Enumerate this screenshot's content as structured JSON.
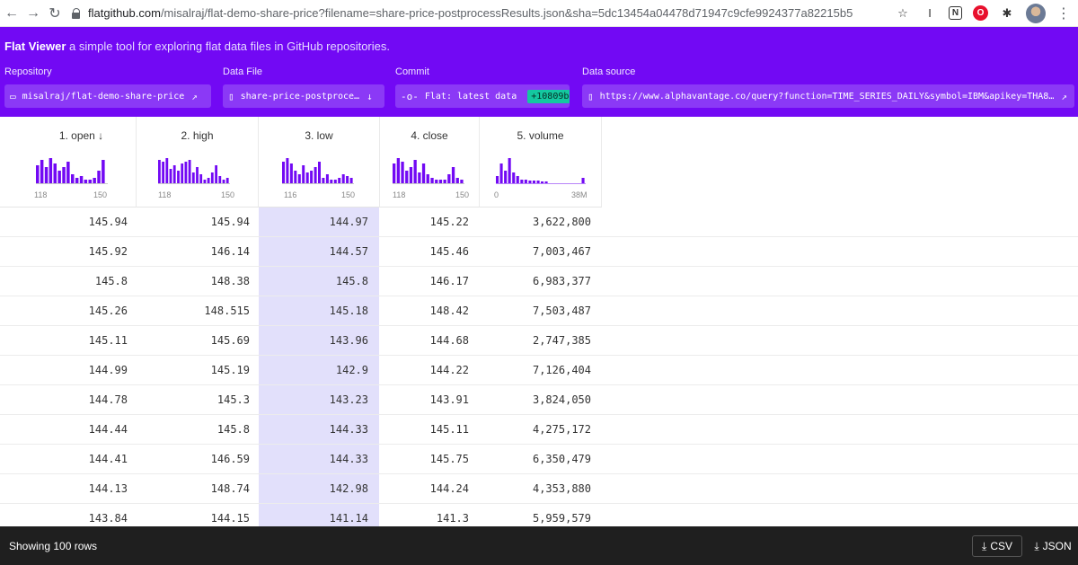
{
  "browser": {
    "url_host": "flatgithub.com",
    "url_path": "/misalraj/flat-demo-share-price?filename=share-price-postprocessResults.json&sha=5dc13454a04478d71947c9cfe9924377a82215b5",
    "ext_i": "I",
    "ext_n": "N",
    "ext_o": "O"
  },
  "header": {
    "app_name": "Flat Viewer",
    "tagline": "a simple tool for exploring flat data files in GitHub repositories.",
    "repository_label": "Repository",
    "repository_value": "misalraj/flat-demo-share-price",
    "datafile_label": "Data File",
    "datafile_value": "share-price-postproce…",
    "commit_label": "Commit",
    "commit_value": "Flat: latest data",
    "commit_sha": "+10809b",
    "datasource_label": "Data source",
    "datasource_value": "https://www.alphavantage.co/query?function=TIME_SERIES_DAILY&symbol=IBM&apikey=THA8…"
  },
  "columns": [
    {
      "title": "1. open ↓",
      "axis_min": "118",
      "axis_max": "150"
    },
    {
      "title": "2. high",
      "axis_min": "118",
      "axis_max": "150"
    },
    {
      "title": "3. low",
      "axis_min": "116",
      "axis_max": "150"
    },
    {
      "title": "4. close",
      "axis_min": "118",
      "axis_max": "150"
    },
    {
      "title": "5. volume",
      "axis_min": "0",
      "axis_max": "38M"
    }
  ],
  "rows": [
    [
      "145.94",
      "145.94",
      "144.97",
      "145.22",
      "3,622,800"
    ],
    [
      "145.92",
      "146.14",
      "144.57",
      "145.46",
      "7,003,467"
    ],
    [
      "145.8",
      "148.38",
      "145.8",
      "146.17",
      "6,983,377"
    ],
    [
      "145.26",
      "148.515",
      "145.18",
      "148.42",
      "7,503,487"
    ],
    [
      "145.11",
      "145.69",
      "143.96",
      "144.68",
      "2,747,385"
    ],
    [
      "144.99",
      "145.19",
      "142.9",
      "144.22",
      "7,126,404"
    ],
    [
      "144.78",
      "145.3",
      "143.23",
      "143.91",
      "3,824,050"
    ],
    [
      "144.44",
      "145.8",
      "144.33",
      "145.11",
      "4,275,172"
    ],
    [
      "144.41",
      "146.59",
      "144.33",
      "145.75",
      "6,350,479"
    ],
    [
      "144.13",
      "148.74",
      "142.98",
      "144.24",
      "4,353,880"
    ],
    [
      "143.84",
      "144.15",
      "141.14",
      "141.3",
      "5,959,579"
    ]
  ],
  "footer": {
    "row_count": "Showing 100 rows",
    "csv_label": "CSV",
    "json_label": "JSON"
  },
  "colors": {
    "brand": "#7209f4",
    "highlight_column": "#e2e0fb",
    "sha_badge": "#14c8a0"
  }
}
